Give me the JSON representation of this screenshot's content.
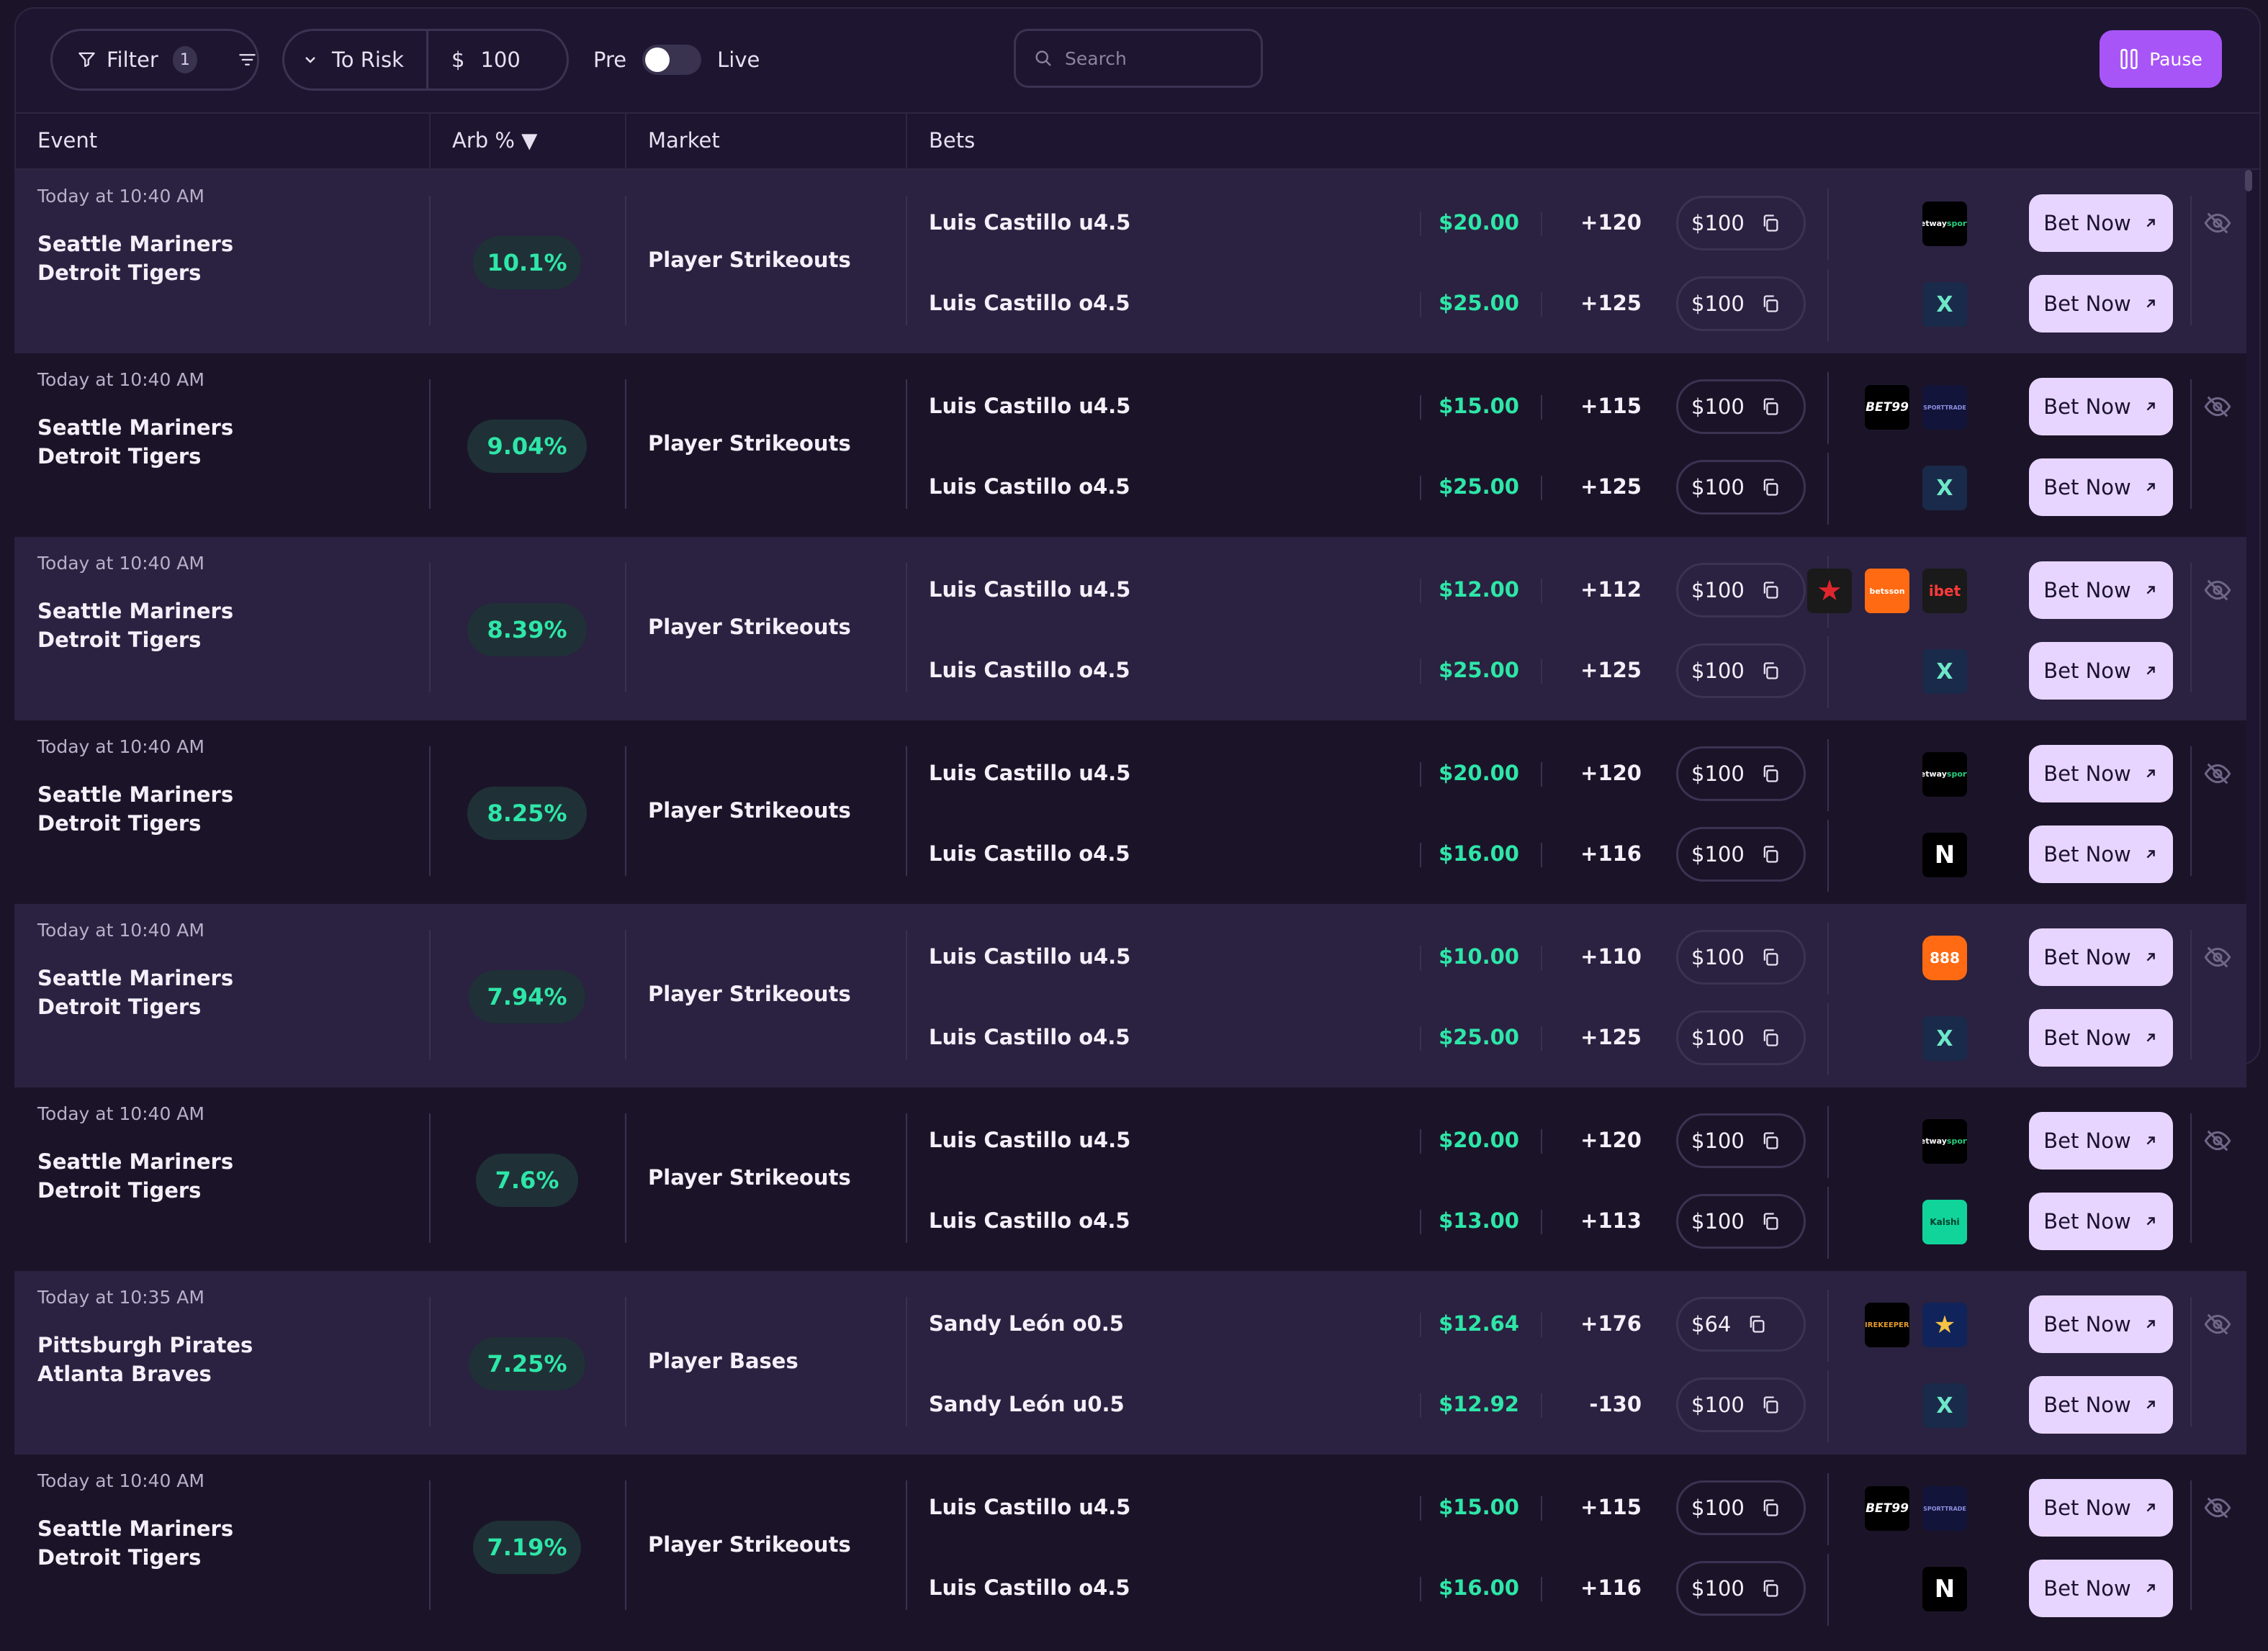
{
  "toolbar": {
    "filter_label": "Filter",
    "filter_count": "1",
    "to_risk_label": "To Risk",
    "currency": "$",
    "risk_value": "100",
    "pre_label": "Pre",
    "live_label": "Live",
    "search_placeholder": "Search",
    "pause_label": "Pause"
  },
  "columns": {
    "event": "Event",
    "arb": "Arb %",
    "arb_sort": "▼",
    "market": "Market",
    "bets": "Bets"
  },
  "colors": {
    "accent": "#a855f7",
    "positive": "#2ee6a8",
    "bet_button": "#e8d5ff"
  },
  "rows": [
    {
      "time": "Today at 10:40 AM",
      "team1": "Seattle Mariners",
      "team2": "Detroit Tigers",
      "arb": "10.1%",
      "market": "Player Strikeouts",
      "bets": [
        {
          "name": "Luis Castillo u4.5",
          "stake": "$20.00",
          "odds": "+120",
          "amount": "$100",
          "books": [
            "betway"
          ],
          "button": "Bet Now"
        },
        {
          "name": "Luis Castillo o4.5",
          "stake": "$25.00",
          "odds": "+125",
          "amount": "$100",
          "books": [
            "prophet"
          ],
          "button": "Bet Now"
        }
      ]
    },
    {
      "time": "Today at 10:40 AM",
      "team1": "Seattle Mariners",
      "team2": "Detroit Tigers",
      "arb": "9.04%",
      "market": "Player Strikeouts",
      "bets": [
        {
          "name": "Luis Castillo u4.5",
          "stake": "$15.00",
          "odds": "+115",
          "amount": "$100",
          "books": [
            "bet99",
            "sporttrade"
          ],
          "button": "Bet Now"
        },
        {
          "name": "Luis Castillo o4.5",
          "stake": "$25.00",
          "odds": "+125",
          "amount": "$100",
          "books": [
            "prophet"
          ],
          "button": "Bet Now"
        }
      ]
    },
    {
      "time": "Today at 10:40 AM",
      "team1": "Seattle Mariners",
      "team2": "Detroit Tigers",
      "arb": "8.39%",
      "market": "Player Strikeouts",
      "bets": [
        {
          "name": "Luis Castillo u4.5",
          "stake": "$12.00",
          "odds": "+112",
          "amount": "$100",
          "books": [
            "star",
            "betsson",
            "ibet"
          ],
          "button": "Bet Now"
        },
        {
          "name": "Luis Castillo o4.5",
          "stake": "$25.00",
          "odds": "+125",
          "amount": "$100",
          "books": [
            "prophet"
          ],
          "button": "Bet Now"
        }
      ]
    },
    {
      "time": "Today at 10:40 AM",
      "team1": "Seattle Mariners",
      "team2": "Detroit Tigers",
      "arb": "8.25%",
      "market": "Player Strikeouts",
      "bets": [
        {
          "name": "Luis Castillo u4.5",
          "stake": "$20.00",
          "odds": "+120",
          "amount": "$100",
          "books": [
            "betway"
          ],
          "button": "Bet Now"
        },
        {
          "name": "Luis Castillo o4.5",
          "stake": "$16.00",
          "odds": "+116",
          "amount": "$100",
          "books": [
            "novig"
          ],
          "button": "Bet Now"
        }
      ]
    },
    {
      "time": "Today at 10:40 AM",
      "team1": "Seattle Mariners",
      "team2": "Detroit Tigers",
      "arb": "7.94%",
      "market": "Player Strikeouts",
      "bets": [
        {
          "name": "Luis Castillo u4.5",
          "stake": "$10.00",
          "odds": "+110",
          "amount": "$100",
          "books": [
            "e888"
          ],
          "button": "Bet Now"
        },
        {
          "name": "Luis Castillo o4.5",
          "stake": "$25.00",
          "odds": "+125",
          "amount": "$100",
          "books": [
            "prophet"
          ],
          "button": "Bet Now"
        }
      ]
    },
    {
      "time": "Today at 10:40 AM",
      "team1": "Seattle Mariners",
      "team2": "Detroit Tigers",
      "arb": "7.6%",
      "market": "Player Strikeouts",
      "bets": [
        {
          "name": "Luis Castillo u4.5",
          "stake": "$20.00",
          "odds": "+120",
          "amount": "$100",
          "books": [
            "betway"
          ],
          "button": "Bet Now"
        },
        {
          "name": "Luis Castillo o4.5",
          "stake": "$13.00",
          "odds": "+113",
          "amount": "$100",
          "books": [
            "kalshi"
          ],
          "button": "Bet Now"
        }
      ]
    },
    {
      "time": "Today at 10:35 AM",
      "team1": "Pittsburgh Pirates",
      "team2": "Atlanta Braves",
      "arb": "7.25%",
      "market": "Player Bases",
      "bets": [
        {
          "name": "Sandy León o0.5",
          "stake": "$12.64",
          "odds": "+176",
          "amount": "$64",
          "books": [
            "fk",
            "bst"
          ],
          "button": "Bet Now"
        },
        {
          "name": "Sandy León u0.5",
          "stake": "$12.92",
          "odds": "-130",
          "amount": "$100",
          "books": [
            "prophet"
          ],
          "button": "Bet Now"
        }
      ]
    },
    {
      "time": "Today at 10:40 AM",
      "team1": "Seattle Mariners",
      "team2": "Detroit Tigers",
      "arb": "7.19%",
      "market": "Player Strikeouts",
      "bets": [
        {
          "name": "Luis Castillo u4.5",
          "stake": "$15.00",
          "odds": "+115",
          "amount": "$100",
          "books": [
            "bet99",
            "sporttrade"
          ],
          "button": "Bet Now"
        },
        {
          "name": "Luis Castillo o4.5",
          "stake": "$16.00",
          "odds": "+116",
          "amount": "$100",
          "books": [
            "novig"
          ],
          "button": "Bet Now"
        }
      ]
    }
  ],
  "book_logos": {
    "betway": {
      "icon": "betway-sports-logo",
      "text": "betway",
      "sub": "sports"
    },
    "prophet": {
      "icon": "prophetx-logo",
      "text": "X"
    },
    "bet99": {
      "icon": "bet99-logo",
      "text": "BET99"
    },
    "sporttrade": {
      "icon": "sporttrade-logo",
      "text": "SPORTTRADE"
    },
    "star": {
      "icon": "star-logo",
      "text": "★"
    },
    "betsson": {
      "icon": "betsson-logo",
      "text": "betsson"
    },
    "ibet": {
      "icon": "ibet-logo",
      "text": "ibet"
    },
    "novig": {
      "icon": "novig-logo",
      "text": "N"
    },
    "e888": {
      "icon": "888-sport-logo",
      "text": "888"
    },
    "kalshi": {
      "icon": "kalshi-logo",
      "text": "Kalshi"
    },
    "fk": {
      "icon": "firekeepers-logo",
      "text": "FIREKEEPERS"
    },
    "bst": {
      "icon": "star-sports-logo",
      "text": "★"
    }
  }
}
